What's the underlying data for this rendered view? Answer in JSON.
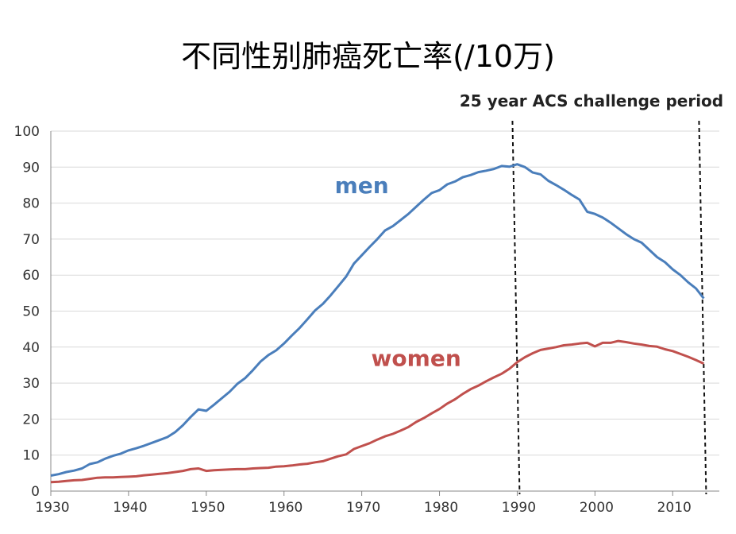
{
  "chart_data": {
    "type": "line",
    "title": "不同性别肺癌死亡率(/10万)",
    "xlabel": "",
    "ylabel": "",
    "xlim": [
      1930,
      2016
    ],
    "ylim": [
      0,
      100
    ],
    "x_ticks": [
      1930,
      1940,
      1950,
      1960,
      1970,
      1980,
      1990,
      2000,
      2010
    ],
    "y_ticks": [
      0,
      10,
      20,
      30,
      40,
      50,
      60,
      70,
      80,
      90,
      100
    ],
    "grid": true,
    "series": [
      {
        "name": "men",
        "color": "#4a7ebb",
        "x": [
          1930,
          1931,
          1932,
          1933,
          1934,
          1935,
          1936,
          1937,
          1938,
          1939,
          1940,
          1941,
          1942,
          1943,
          1944,
          1945,
          1946,
          1947,
          1948,
          1949,
          1950,
          1951,
          1952,
          1953,
          1954,
          1955,
          1956,
          1957,
          1958,
          1959,
          1960,
          1961,
          1962,
          1963,
          1964,
          1965,
          1966,
          1967,
          1968,
          1969,
          1970,
          1971,
          1972,
          1973,
          1974,
          1975,
          1976,
          1977,
          1978,
          1979,
          1980,
          1981,
          1982,
          1983,
          1984,
          1985,
          1986,
          1987,
          1988,
          1989,
          1990,
          1991,
          1992,
          1993,
          1994,
          1995,
          1996,
          1997,
          1998,
          1999,
          2000,
          2001,
          2002,
          2003,
          2004,
          2005,
          2006,
          2007,
          2008,
          2009,
          2010,
          2011,
          2012,
          2013,
          2014
        ],
        "values": [
          4.3,
          4.7,
          5.3,
          5.7,
          6.3,
          7.5,
          8.0,
          9.0,
          9.8,
          10.4,
          11.3,
          11.9,
          12.6,
          13.4,
          14.2,
          15.0,
          16.4,
          18.3,
          20.6,
          22.7,
          22.3,
          24.0,
          25.8,
          27.6,
          29.8,
          31.4,
          33.6,
          36.0,
          37.8,
          39.1,
          41.0,
          43.2,
          45.3,
          47.7,
          50.2,
          52.0,
          54.4,
          57.0,
          59.6,
          63.2,
          65.5,
          67.8,
          70.0,
          72.4,
          73.6,
          75.3,
          77.0,
          79.0,
          81.0,
          82.8,
          83.6,
          85.2,
          86.0,
          87.2,
          87.8,
          88.6,
          89.0,
          89.5,
          90.3,
          90.1,
          90.8,
          90.0,
          88.5,
          88.0,
          86.2,
          85.0,
          83.7,
          82.3,
          81.0,
          77.6,
          77.0,
          76.0,
          74.6,
          73.0,
          71.4,
          70.0,
          69.0,
          67.0,
          65.0,
          63.6,
          61.6,
          60.0,
          58.0,
          56.3,
          53.5
        ]
      },
      {
        "name": "women",
        "color": "#c0504d",
        "x": [
          1930,
          1931,
          1932,
          1933,
          1934,
          1935,
          1936,
          1937,
          1938,
          1939,
          1940,
          1941,
          1942,
          1943,
          1944,
          1945,
          1946,
          1947,
          1948,
          1949,
          1950,
          1951,
          1952,
          1953,
          1954,
          1955,
          1956,
          1957,
          1958,
          1959,
          1960,
          1961,
          1962,
          1963,
          1964,
          1965,
          1966,
          1967,
          1968,
          1969,
          1970,
          1971,
          1972,
          1973,
          1974,
          1975,
          1976,
          1977,
          1978,
          1979,
          1980,
          1981,
          1982,
          1983,
          1984,
          1985,
          1986,
          1987,
          1988,
          1989,
          1990,
          1991,
          1992,
          1993,
          1994,
          1995,
          1996,
          1997,
          1998,
          1999,
          2000,
          2001,
          2002,
          2003,
          2004,
          2005,
          2006,
          2007,
          2008,
          2009,
          2010,
          2011,
          2012,
          2013,
          2014
        ],
        "values": [
          2.5,
          2.6,
          2.8,
          3.0,
          3.1,
          3.4,
          3.7,
          3.8,
          3.8,
          3.9,
          4.0,
          4.1,
          4.4,
          4.6,
          4.8,
          5.0,
          5.3,
          5.6,
          6.1,
          6.3,
          5.6,
          5.8,
          5.9,
          6.0,
          6.1,
          6.1,
          6.3,
          6.4,
          6.5,
          6.8,
          6.9,
          7.1,
          7.4,
          7.6,
          8.0,
          8.3,
          9.0,
          9.7,
          10.2,
          11.7,
          12.5,
          13.3,
          14.3,
          15.2,
          15.9,
          16.8,
          17.8,
          19.2,
          20.3,
          21.6,
          22.8,
          24.3,
          25.5,
          27.0,
          28.3,
          29.3,
          30.5,
          31.6,
          32.6,
          34.0,
          35.8,
          37.2,
          38.3,
          39.2,
          39.6,
          40.0,
          40.5,
          40.7,
          41.0,
          41.2,
          40.2,
          41.2,
          41.2,
          41.7,
          41.4,
          41.0,
          40.7,
          40.3,
          40.1,
          39.4,
          38.9,
          38.1,
          37.3,
          36.4,
          35.4
        ]
      }
    ],
    "series_labels": [
      {
        "text": "men",
        "x": 1970,
        "y": 85,
        "color": "#4a7ebb"
      },
      {
        "text": "women",
        "x": 1977,
        "y": 37,
        "color": "#c0504d"
      }
    ],
    "period_label": "25 year ACS challenge period",
    "period_lines": [
      1990,
      2014
    ]
  }
}
